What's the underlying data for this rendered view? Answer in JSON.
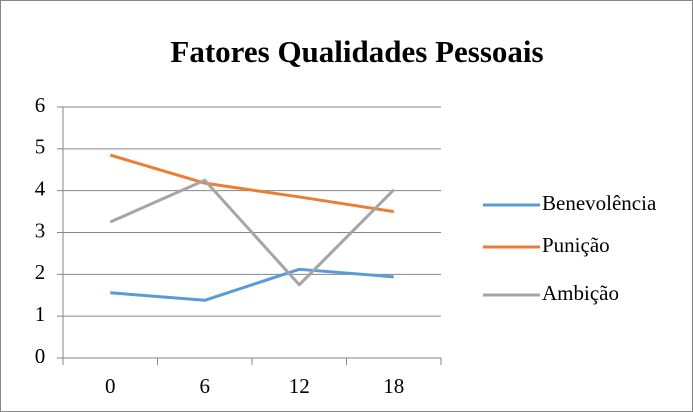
{
  "chart_data": {
    "type": "line",
    "title": "Fatores Qualidades Pessoais",
    "categories": [
      "0",
      "6",
      "12",
      "18"
    ],
    "series": [
      {
        "name": "Benevolência",
        "color": "#5b9bd5",
        "values": [
          1.56,
          1.38,
          2.12,
          1.94
        ]
      },
      {
        "name": "Punição",
        "color": "#ed7d31",
        "values": [
          4.85,
          4.18,
          3.85,
          3.5
        ]
      },
      {
        "name": "Ambição",
        "color": "#a5a5a5",
        "values": [
          3.25,
          4.25,
          1.75,
          4.02
        ]
      }
    ],
    "ylim": [
      0,
      6
    ],
    "yticks": [
      0,
      1,
      2,
      3,
      4,
      5,
      6
    ],
    "grid": true,
    "legend": "right"
  }
}
